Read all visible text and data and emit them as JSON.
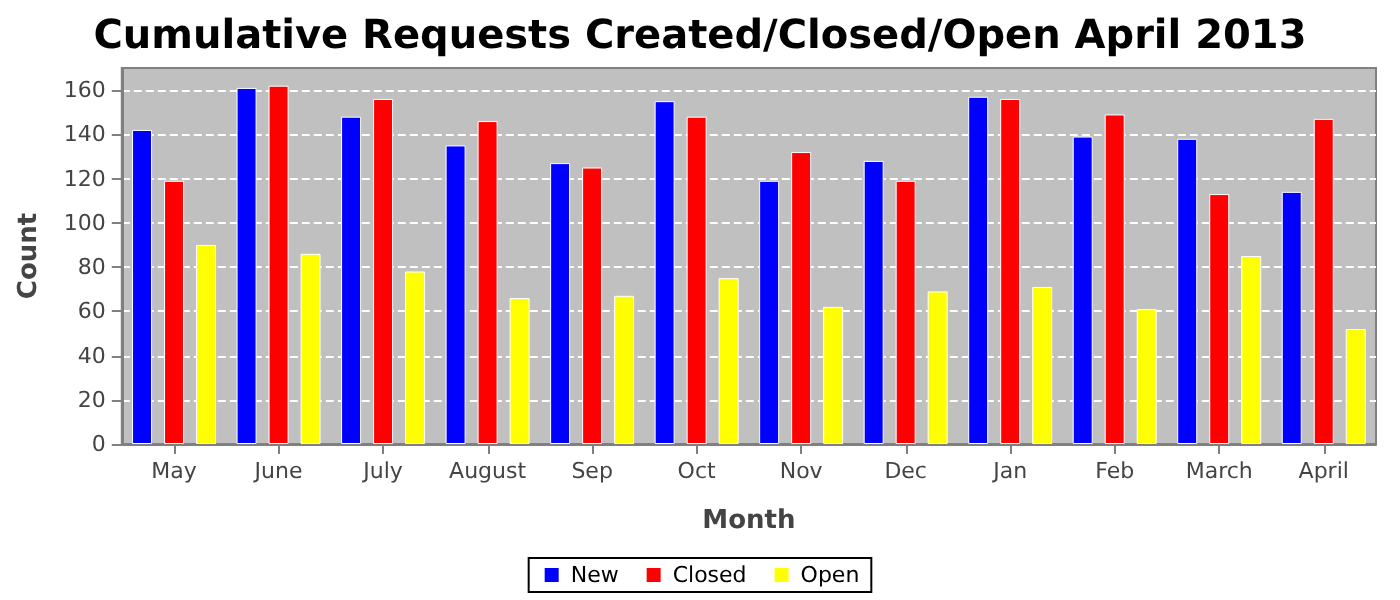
{
  "chart_data": {
    "type": "bar",
    "title": "Cumulative Requests Created/Closed/Open April 2013",
    "xlabel": "Month",
    "ylabel": "Count",
    "categories": [
      "May",
      "June",
      "July",
      "August",
      "Sep",
      "Oct",
      "Nov",
      "Dec",
      "Jan",
      "Feb",
      "March",
      "April"
    ],
    "series": [
      {
        "name": "New",
        "color": "#0000ff",
        "values": [
          142,
          161,
          148,
          135,
          127,
          155,
          119,
          128,
          157,
          139,
          138,
          114
        ]
      },
      {
        "name": "Closed",
        "color": "#ff0000",
        "values": [
          119,
          162,
          156,
          146,
          125,
          148,
          132,
          119,
          156,
          149,
          113,
          147
        ]
      },
      {
        "name": "Open",
        "color": "#ffff00",
        "values": [
          90,
          86,
          78,
          66,
          67,
          75,
          62,
          69,
          71,
          61,
          85,
          52
        ]
      }
    ],
    "ylim": [
      0,
      170
    ],
    "yticks": [
      0,
      20,
      40,
      60,
      80,
      100,
      120,
      140,
      160
    ],
    "grid": "y",
    "legend": "bottom"
  }
}
